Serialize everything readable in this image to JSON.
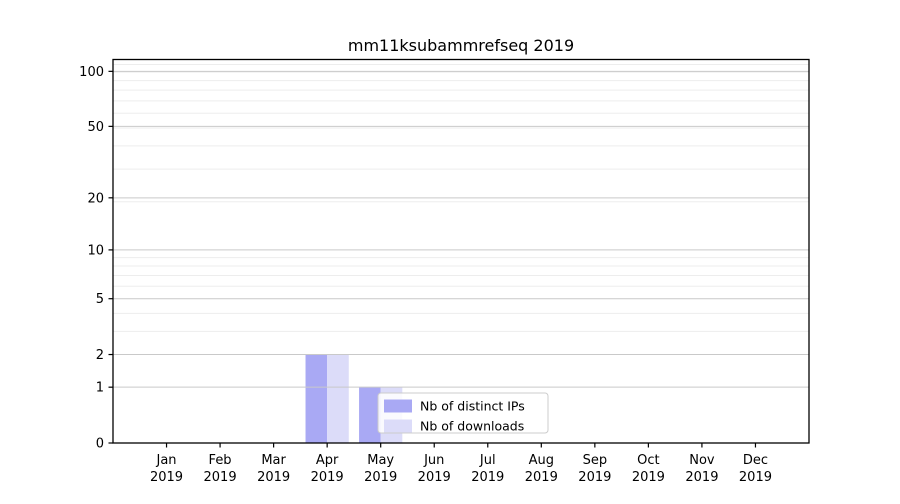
{
  "chart_data": {
    "type": "bar",
    "title": "mm11ksubammrefseq 2019",
    "categories": [
      "Jan",
      "Feb",
      "Mar",
      "Apr",
      "May",
      "Jun",
      "Jul",
      "Aug",
      "Sep",
      "Oct",
      "Nov",
      "Dec"
    ],
    "category_year": "2019",
    "series": [
      {
        "name": "Nb of distinct IPs",
        "color": "#a9a9f4",
        "values": [
          0,
          0,
          0,
          2,
          1,
          0,
          0,
          0,
          0,
          0,
          0,
          0
        ]
      },
      {
        "name": "Nb of downloads",
        "color": "#dcdcf9",
        "values": [
          0,
          0,
          0,
          2,
          1,
          0,
          0,
          0,
          0,
          0,
          0,
          0
        ]
      }
    ],
    "yscale": "log1p",
    "yticks": [
      0,
      1,
      2,
      5,
      10,
      20,
      50,
      100
    ],
    "ylim": [
      0,
      116
    ],
    "xlabel": "",
    "ylabel": "",
    "grid": true,
    "legend_position": "lower right inside plot",
    "colors": {
      "grid_major": "#c9c9c9",
      "grid_minor": "#ededed",
      "axis": "#000000",
      "background": "#ffffff",
      "legend_bg": "#ffffff",
      "legend_border": "#cccccc"
    }
  }
}
